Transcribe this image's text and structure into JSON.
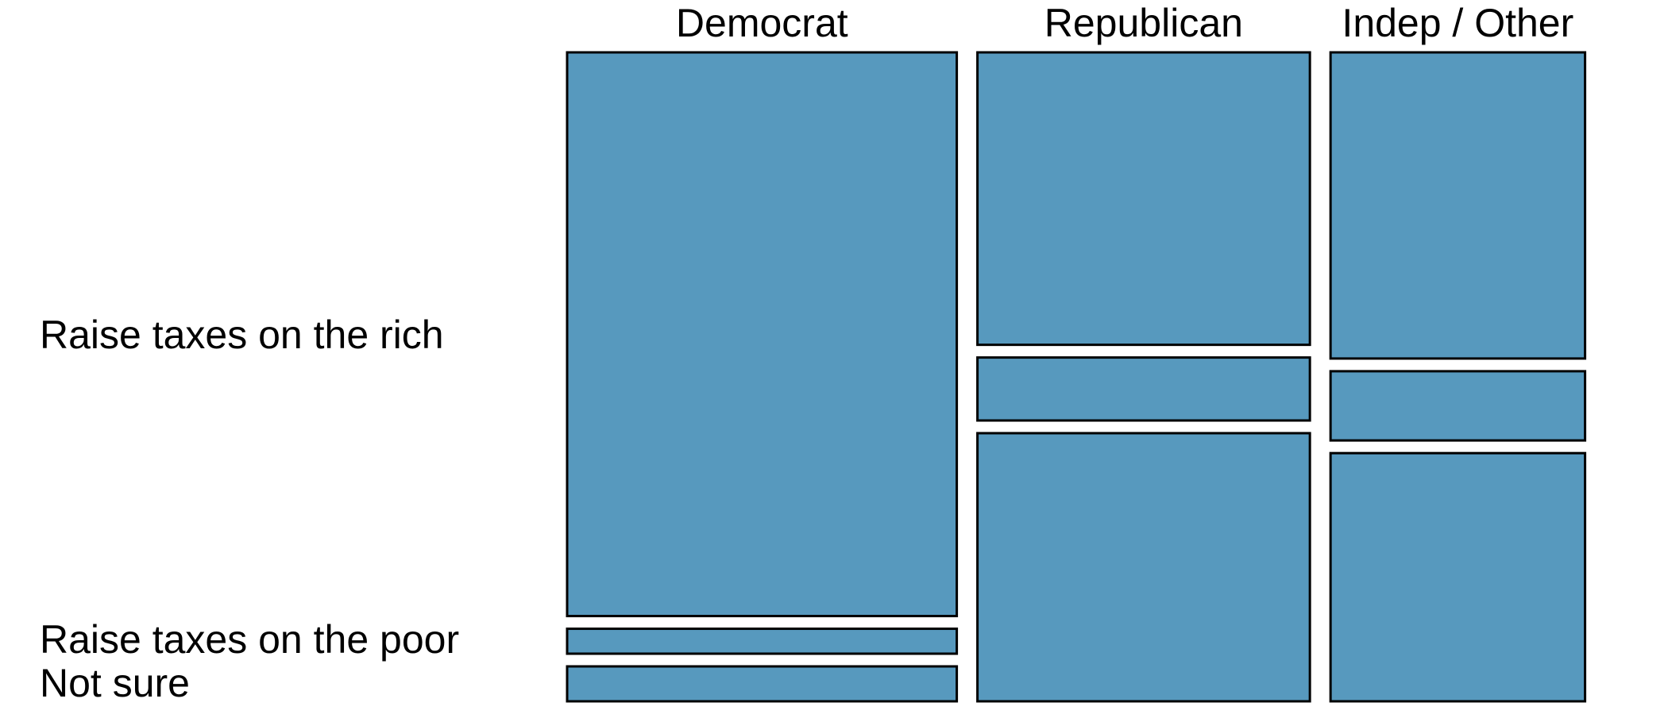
{
  "chart_data": {
    "type": "mosaic",
    "columns": [
      "Democrat",
      "Republican",
      "Indep / Other"
    ],
    "rows": [
      "Raise taxes on the rich",
      "Raise taxes on the poor",
      "Not sure"
    ],
    "column_share": [
      0.395,
      0.337,
      0.258
    ],
    "proportions": [
      [
        0.904,
        0.04,
        0.056
      ],
      [
        0.469,
        0.101,
        0.43
      ],
      [
        0.491,
        0.111,
        0.398
      ]
    ],
    "fill_color": "#5799BE",
    "edge_color": "#000000"
  }
}
